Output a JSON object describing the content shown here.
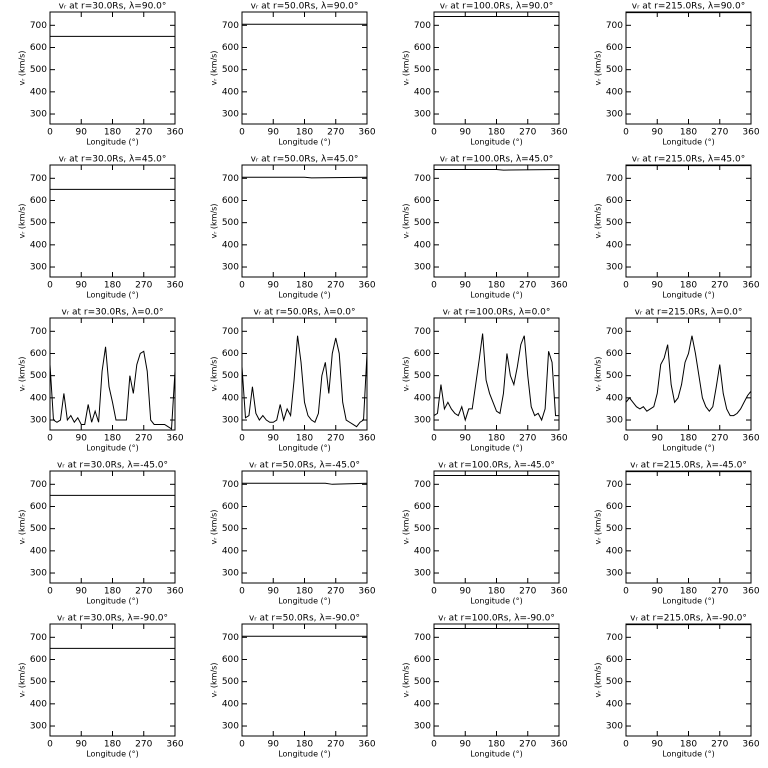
{
  "chart_data": [
    {
      "type": "line",
      "title": "vᵣ at r=30.0Rs, λ=90.0°",
      "x_label": "Longitude (°)",
      "y_label": "vᵣ (km/s)",
      "xlim": [
        0,
        360
      ],
      "xticks": [
        0,
        90,
        180,
        270,
        360
      ],
      "ylim": [
        255,
        760
      ],
      "yticks": [
        300,
        400,
        500,
        600,
        700
      ],
      "color": "#000000",
      "x": [
        0,
        360
      ],
      "values": [
        650,
        650
      ]
    },
    {
      "type": "line",
      "title": "vᵣ at r=50.0Rs, λ=90.0°",
      "x_label": "Longitude (°)",
      "y_label": "vᵣ (km/s)",
      "xlim": [
        0,
        360
      ],
      "xticks": [
        0,
        90,
        180,
        270,
        360
      ],
      "ylim": [
        255,
        760
      ],
      "yticks": [
        300,
        400,
        500,
        600,
        700
      ],
      "color": "#000000",
      "x": [
        0,
        360
      ],
      "values": [
        705,
        705
      ]
    },
    {
      "type": "line",
      "title": "vᵣ at r=100.0Rs, λ=90.0°",
      "x_label": "Longitude (°)",
      "y_label": "vᵣ (km/s)",
      "xlim": [
        0,
        360
      ],
      "xticks": [
        0,
        90,
        180,
        270,
        360
      ],
      "ylim": [
        255,
        760
      ],
      "yticks": [
        300,
        400,
        500,
        600,
        700
      ],
      "color": "#000000",
      "x": [
        0,
        360
      ],
      "values": [
        740,
        740
      ]
    },
    {
      "type": "line",
      "title": "vᵣ at r=215.0Rs, λ=90.0°",
      "x_label": "Longitude (°)",
      "y_label": "vᵣ (km/s)",
      "xlim": [
        0,
        360
      ],
      "xticks": [
        0,
        90,
        180,
        270,
        360
      ],
      "ylim": [
        255,
        760
      ],
      "yticks": [
        300,
        400,
        500,
        600,
        700
      ],
      "color": "#000000",
      "x": [
        0,
        360
      ],
      "values": [
        757,
        757
      ]
    },
    {
      "type": "line",
      "title": "vᵣ at r=30.0Rs, λ=45.0°",
      "x_label": "Longitude (°)",
      "y_label": "vᵣ (km/s)",
      "xlim": [
        0,
        360
      ],
      "xticks": [
        0,
        90,
        180,
        270,
        360
      ],
      "ylim": [
        255,
        760
      ],
      "yticks": [
        300,
        400,
        500,
        600,
        700
      ],
      "color": "#000000",
      "x": [
        0,
        360
      ],
      "values": [
        650,
        650
      ]
    },
    {
      "type": "line",
      "title": "vᵣ at r=50.0Rs, λ=45.0°",
      "x_label": "Longitude (°)",
      "y_label": "vᵣ (km/s)",
      "xlim": [
        0,
        360
      ],
      "xticks": [
        0,
        90,
        180,
        270,
        360
      ],
      "ylim": [
        255,
        760
      ],
      "yticks": [
        300,
        400,
        500,
        600,
        700
      ],
      "color": "#000000",
      "x": [
        0,
        180,
        200,
        360
      ],
      "values": [
        705,
        705,
        702,
        705
      ]
    },
    {
      "type": "line",
      "title": "vᵣ at r=100.0Rs, λ=45.0°",
      "x_label": "Longitude (°)",
      "y_label": "vᵣ (km/s)",
      "xlim": [
        0,
        360
      ],
      "xticks": [
        0,
        90,
        180,
        270,
        360
      ],
      "ylim": [
        255,
        760
      ],
      "yticks": [
        300,
        400,
        500,
        600,
        700
      ],
      "color": "#000000",
      "x": [
        0,
        180,
        200,
        360
      ],
      "values": [
        740,
        740,
        737,
        740
      ]
    },
    {
      "type": "line",
      "title": "vᵣ at r=215.0Rs, λ=45.0°",
      "x_label": "Longitude (°)",
      "y_label": "vᵣ (km/s)",
      "xlim": [
        0,
        360
      ],
      "xticks": [
        0,
        90,
        180,
        270,
        360
      ],
      "ylim": [
        255,
        760
      ],
      "yticks": [
        300,
        400,
        500,
        600,
        700
      ],
      "color": "#000000",
      "x": [
        0,
        360
      ],
      "values": [
        757,
        757
      ]
    },
    {
      "type": "line",
      "title": "vᵣ at r=30.0Rs, λ=0.0°",
      "x_label": "Longitude (°)",
      "y_label": "vᵣ (km/s)",
      "xlim": [
        0,
        360
      ],
      "xticks": [
        0,
        90,
        180,
        270,
        360
      ],
      "ylim": [
        255,
        760
      ],
      "yticks": [
        300,
        400,
        500,
        600,
        700
      ],
      "color": "#000000",
      "x": [
        0,
        10,
        20,
        30,
        40,
        50,
        60,
        70,
        80,
        90,
        100,
        110,
        120,
        130,
        140,
        150,
        160,
        170,
        180,
        190,
        200,
        210,
        220,
        230,
        240,
        250,
        260,
        270,
        280,
        290,
        300,
        310,
        320,
        330,
        340,
        350,
        360
      ],
      "values": [
        550,
        300,
        290,
        300,
        420,
        300,
        320,
        290,
        310,
        280,
        280,
        370,
        290,
        340,
        290,
        520,
        630,
        450,
        380,
        300,
        300,
        300,
        300,
        500,
        420,
        550,
        600,
        610,
        520,
        300,
        280,
        280,
        280,
        280,
        270,
        260,
        520
      ]
    },
    {
      "type": "line",
      "title": "vᵣ at r=50.0Rs, λ=0.0°",
      "x_label": "Longitude (°)",
      "y_label": "vᵣ (km/s)",
      "xlim": [
        0,
        360
      ],
      "xticks": [
        0,
        90,
        180,
        270,
        360
      ],
      "ylim": [
        255,
        760
      ],
      "yticks": [
        300,
        400,
        500,
        600,
        700
      ],
      "color": "#000000",
      "x": [
        0,
        10,
        20,
        30,
        40,
        50,
        60,
        70,
        80,
        90,
        100,
        110,
        120,
        130,
        140,
        150,
        160,
        170,
        180,
        190,
        200,
        210,
        220,
        230,
        240,
        250,
        260,
        270,
        280,
        290,
        300,
        310,
        320,
        330,
        340,
        350,
        360
      ],
      "values": [
        540,
        310,
        320,
        450,
        330,
        300,
        320,
        300,
        290,
        290,
        300,
        370,
        300,
        350,
        320,
        480,
        680,
        560,
        380,
        320,
        300,
        290,
        330,
        500,
        560,
        420,
        600,
        670,
        600,
        380,
        300,
        290,
        280,
        270,
        290,
        300,
        600
      ]
    },
    {
      "type": "line",
      "title": "vᵣ at r=100.0Rs, λ=0.0°",
      "x_label": "Longitude (°)",
      "y_label": "vᵣ (km/s)",
      "xlim": [
        0,
        360
      ],
      "xticks": [
        0,
        90,
        180,
        270,
        360
      ],
      "ylim": [
        255,
        760
      ],
      "yticks": [
        300,
        400,
        500,
        600,
        700
      ],
      "color": "#000000",
      "x": [
        0,
        10,
        20,
        30,
        40,
        50,
        60,
        70,
        80,
        90,
        100,
        110,
        120,
        130,
        140,
        150,
        160,
        170,
        180,
        190,
        200,
        210,
        220,
        230,
        240,
        250,
        260,
        270,
        280,
        290,
        300,
        310,
        320,
        330,
        340,
        350,
        360
      ],
      "values": [
        320,
        330,
        460,
        350,
        380,
        350,
        330,
        320,
        360,
        300,
        350,
        350,
        460,
        570,
        690,
        480,
        420,
        380,
        340,
        330,
        420,
        600,
        500,
        460,
        540,
        640,
        680,
        500,
        360,
        320,
        330,
        300,
        350,
        610,
        560,
        320,
        320
      ]
    },
    {
      "type": "line",
      "title": "vᵣ at r=215.0Rs, λ=0.0°",
      "x_label": "Longitude (°)",
      "y_label": "vᵣ (km/s)",
      "xlim": [
        0,
        360
      ],
      "xticks": [
        0,
        90,
        180,
        270,
        360
      ],
      "ylim": [
        255,
        760
      ],
      "yticks": [
        300,
        400,
        500,
        600,
        700
      ],
      "color": "#000000",
      "x": [
        0,
        10,
        20,
        30,
        40,
        50,
        60,
        70,
        80,
        90,
        100,
        110,
        120,
        130,
        140,
        150,
        160,
        170,
        180,
        190,
        200,
        210,
        220,
        230,
        240,
        250,
        260,
        270,
        280,
        290,
        300,
        310,
        320,
        330,
        340,
        350,
        360
      ],
      "values": [
        380,
        400,
        380,
        360,
        350,
        360,
        340,
        350,
        360,
        420,
        550,
        580,
        640,
        460,
        380,
        400,
        460,
        560,
        600,
        680,
        600,
        500,
        400,
        360,
        340,
        360,
        450,
        550,
        420,
        350,
        320,
        320,
        330,
        350,
        380,
        410,
        430
      ]
    },
    {
      "type": "line",
      "title": "vᵣ at r=30.0Rs, λ=-45.0°",
      "x_label": "Longitude (°)",
      "y_label": "vᵣ (km/s)",
      "xlim": [
        0,
        360
      ],
      "xticks": [
        0,
        90,
        180,
        270,
        360
      ],
      "ylim": [
        255,
        760
      ],
      "yticks": [
        300,
        400,
        500,
        600,
        700
      ],
      "color": "#000000",
      "x": [
        0,
        360
      ],
      "values": [
        650,
        650
      ]
    },
    {
      "type": "line",
      "title": "vᵣ at r=50.0Rs, λ=-45.0°",
      "x_label": "Longitude (°)",
      "y_label": "vᵣ (km/s)",
      "xlim": [
        0,
        360
      ],
      "xticks": [
        0,
        90,
        180,
        270,
        360
      ],
      "ylim": [
        255,
        760
      ],
      "yticks": [
        300,
        400,
        500,
        600,
        700
      ],
      "color": "#000000",
      "x": [
        0,
        240,
        260,
        360
      ],
      "values": [
        705,
        705,
        700,
        705
      ]
    },
    {
      "type": "line",
      "title": "vᵣ at r=100.0Rs, λ=-45.0°",
      "x_label": "Longitude (°)",
      "y_label": "vᵣ (km/s)",
      "xlim": [
        0,
        360
      ],
      "xticks": [
        0,
        90,
        180,
        270,
        360
      ],
      "ylim": [
        255,
        760
      ],
      "yticks": [
        300,
        400,
        500,
        600,
        700
      ],
      "color": "#000000",
      "x": [
        0,
        360
      ],
      "values": [
        740,
        740
      ]
    },
    {
      "type": "line",
      "title": "vᵣ at r=215.0Rs, λ=-45.0°",
      "x_label": "Longitude (°)",
      "y_label": "vᵣ (km/s)",
      "xlim": [
        0,
        360
      ],
      "xticks": [
        0,
        90,
        180,
        270,
        360
      ],
      "ylim": [
        255,
        760
      ],
      "yticks": [
        300,
        400,
        500,
        600,
        700
      ],
      "color": "#000000",
      "x": [
        0,
        360
      ],
      "values": [
        757,
        757
      ]
    },
    {
      "type": "line",
      "title": "vᵣ at r=30.0Rs, λ=-90.0°",
      "x_label": "Longitude (°)",
      "y_label": "vᵣ (km/s)",
      "xlim": [
        0,
        360
      ],
      "xticks": [
        0,
        90,
        180,
        270,
        360
      ],
      "ylim": [
        255,
        760
      ],
      "yticks": [
        300,
        400,
        500,
        600,
        700
      ],
      "color": "#000000",
      "x": [
        0,
        360
      ],
      "values": [
        650,
        650
      ]
    },
    {
      "type": "line",
      "title": "vᵣ at r=50.0Rs, λ=-90.0°",
      "x_label": "Longitude (°)",
      "y_label": "vᵣ (km/s)",
      "xlim": [
        0,
        360
      ],
      "xticks": [
        0,
        90,
        180,
        270,
        360
      ],
      "ylim": [
        255,
        760
      ],
      "yticks": [
        300,
        400,
        500,
        600,
        700
      ],
      "color": "#000000",
      "x": [
        0,
        360
      ],
      "values": [
        705,
        705
      ]
    },
    {
      "type": "line",
      "title": "vᵣ at r=100.0Rs, λ=-90.0°",
      "x_label": "Longitude (°)",
      "y_label": "vᵣ (km/s)",
      "xlim": [
        0,
        360
      ],
      "xticks": [
        0,
        90,
        180,
        270,
        360
      ],
      "ylim": [
        255,
        760
      ],
      "yticks": [
        300,
        400,
        500,
        600,
        700
      ],
      "color": "#000000",
      "x": [
        0,
        360
      ],
      "values": [
        740,
        740
      ]
    },
    {
      "type": "line",
      "title": "vᵣ at r=215.0Rs, λ=-90.0°",
      "x_label": "Longitude (°)",
      "y_label": "vᵣ (km/s)",
      "xlim": [
        0,
        360
      ],
      "xticks": [
        0,
        90,
        180,
        270,
        360
      ],
      "ylim": [
        255,
        760
      ],
      "yticks": [
        300,
        400,
        500,
        600,
        700
      ],
      "color": "#000000",
      "x": [
        0,
        360
      ],
      "values": [
        757,
        757
      ]
    }
  ]
}
